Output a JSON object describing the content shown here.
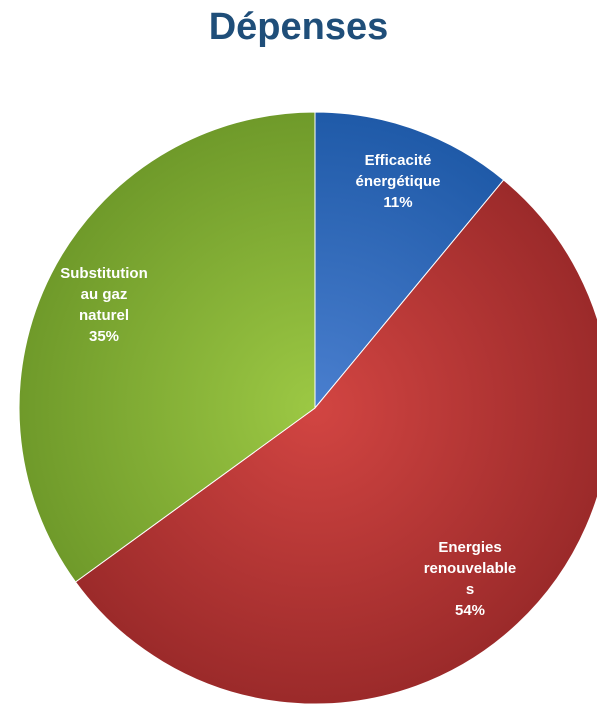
{
  "chart_data": {
    "type": "pie",
    "title": "Dépenses",
    "slices": [
      {
        "label_lines": [
          "Efficacité",
          "énergétique"
        ],
        "percent_label": "11%",
        "value": 11,
        "color": "#4a7fcf",
        "color_dark": "#1f5aa8"
      },
      {
        "label_lines": [
          "Energies",
          "renouvelable",
          "s"
        ],
        "percent_label": "54%",
        "value": 54,
        "color": "#d24542",
        "color_dark": "#9b2a2a"
      },
      {
        "label_lines": [
          "Substitution",
          "au gaz",
          "naturel"
        ],
        "percent_label": "35%",
        "value": 35,
        "color": "#9cc844",
        "color_dark": "#6f9a2a"
      }
    ]
  }
}
